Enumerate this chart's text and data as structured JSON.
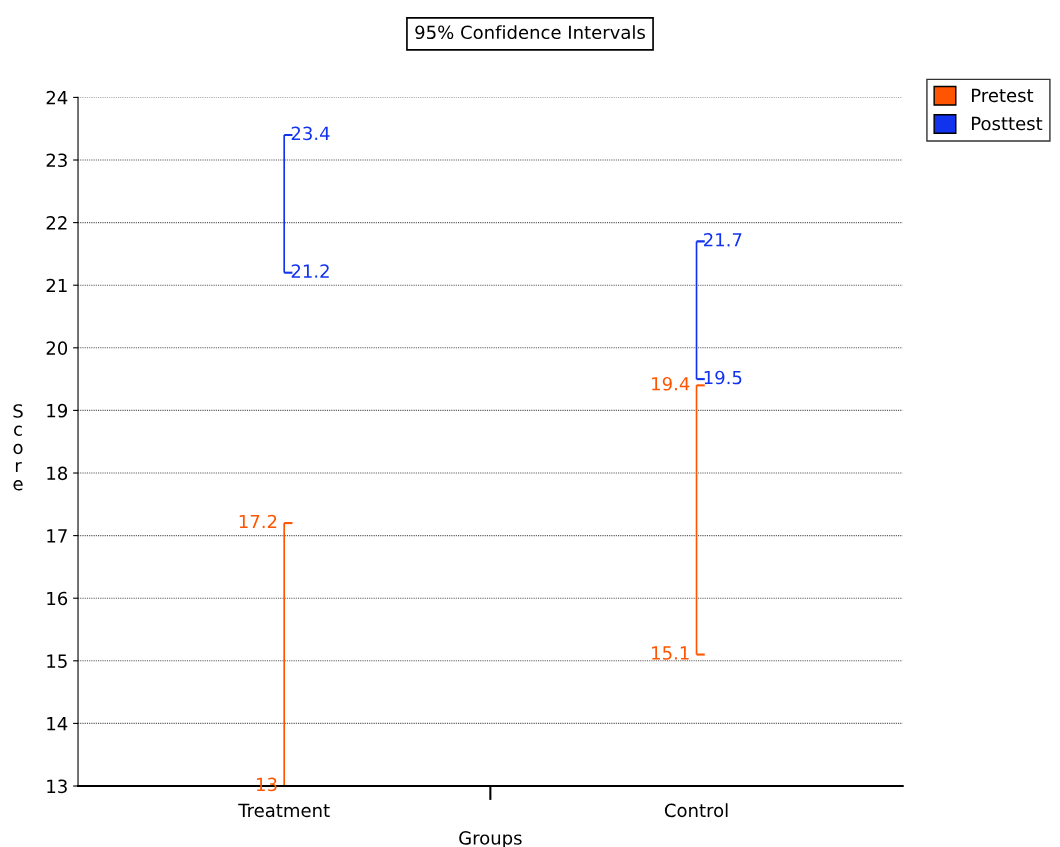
{
  "chart_data": {
    "type": "bar",
    "title": "95% Confidence Intervals",
    "xlabel": "Groups",
    "ylabel": "Score",
    "categories": [
      "Treatment",
      "Control"
    ],
    "series": [
      {
        "name": "Pretest",
        "color": "#ff5500",
        "base": [
          13,
          15.1
        ],
        "values": [
          4.2,
          4.3
        ],
        "value_labels": [
          [
            "13",
            "17.2"
          ],
          [
            "15.1",
            "19.4"
          ]
        ]
      },
      {
        "name": "Posttest",
        "color": "#1133ee",
        "base": [
          21.2,
          19.5
        ],
        "values": [
          2.2,
          2.2
        ],
        "value_labels": [
          [
            "21.2",
            "23.4"
          ],
          [
            "19.5",
            "21.7"
          ]
        ]
      }
    ],
    "ylim": [
      13,
      24
    ],
    "yticks": [
      13,
      14,
      15,
      16,
      17,
      18,
      19,
      20,
      21,
      22,
      23,
      24
    ],
    "grid": "y",
    "legend": "top right"
  }
}
